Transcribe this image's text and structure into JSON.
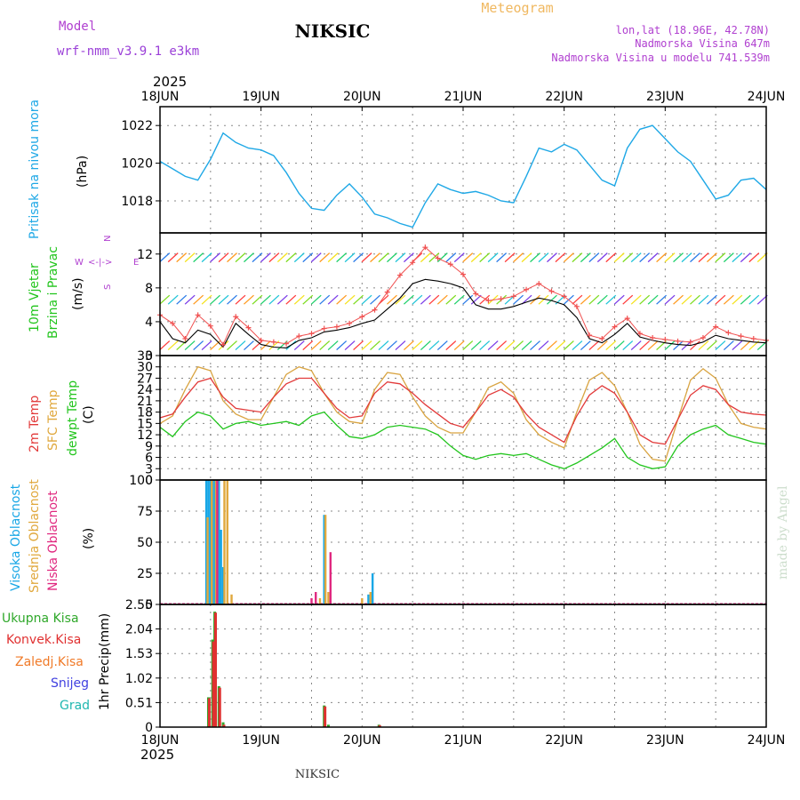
{
  "header": {
    "model_label": "Model",
    "model_name": "wrf-nmm_v3.9.1 e3km",
    "station": "NIKSIC",
    "product": "Meteogram",
    "lonlat": "lon,lat (18.96E, 42.78N)",
    "elevation": "Nadmorska Visina 647m",
    "model_elevation": "Nadmorska Visina u modelu 741.539m",
    "year_top": "2025",
    "year_bottom": "2025",
    "footer_station": "NIKSIC",
    "credit": "made by Angel"
  },
  "colors": {
    "pressure": "#1fa8e6",
    "temp2m": "#e23a3a",
    "sfc": "#d9a441",
    "dewpt": "#22c51d",
    "high_cloud": "#19a7e6",
    "mid_cloud": "#e0a83d",
    "low_cloud": "#e0287f",
    "precip_total": "#2fa82a",
    "precip_conv": "#e03030",
    "precip_frz": "#f07a28",
    "snow": "#4040e0",
    "hail": "#20b7b0",
    "grid": "#888888",
    "model_text": "#b040d0",
    "meteogram_text": "#f0b860"
  },
  "chart_data": [
    {
      "panel": "pressure",
      "type": "line",
      "ylabel_main": "Pritisak na nivou mora",
      "ylabel_unit": "(hPa)",
      "ylim": [
        1016.3,
        1023
      ],
      "yticks": [
        1018,
        1020,
        1022
      ],
      "x_hours": [
        0,
        3,
        6,
        9,
        12,
        15,
        18,
        21,
        24,
        27,
        30,
        33,
        36,
        39,
        42,
        45,
        48,
        51,
        54,
        57,
        60,
        63,
        66,
        69,
        72,
        75,
        78,
        81,
        84,
        87,
        90,
        93,
        96,
        99,
        102,
        105,
        108,
        111,
        114,
        117,
        120,
        123,
        126,
        129,
        132,
        135,
        138,
        141,
        144
      ],
      "values_hpa": [
        1020.1,
        1019.7,
        1019.3,
        1019.1,
        1020.2,
        1021.6,
        1021.1,
        1020.8,
        1020.7,
        1020.4,
        1019.5,
        1018.4,
        1017.6,
        1017.5,
        1018.3,
        1018.9,
        1018.2,
        1017.3,
        1017.1,
        1016.8,
        1016.6,
        1017.9,
        1018.9,
        1018.6,
        1018.4,
        1018.5,
        1018.3,
        1018.0,
        1017.9,
        1019.3,
        1020.8,
        1020.6,
        1021.0,
        1020.7,
        1019.9,
        1019.1,
        1018.8,
        1020.8,
        1021.8,
        1022.0,
        1021.3,
        1020.6,
        1020.1,
        1019.1,
        1018.1,
        1018.3,
        1019.1,
        1019.2,
        1018.6
      ]
    },
    {
      "panel": "wind",
      "type": "line",
      "ylabel_main_1": "10m Vjetar",
      "ylabel_main_2": "Brzina i Pravac",
      "ylabel_unit": "(m/s)",
      "compass_n": "N",
      "compass_s": "S",
      "compass_w": "W",
      "compass_e": "E",
      "compass_arrows": "<-|->",
      "ylim": [
        0,
        14.5
      ],
      "yticks": [
        0,
        4,
        8,
        12
      ],
      "x_hours": [
        0,
        3,
        6,
        9,
        12,
        15,
        18,
        21,
        24,
        27,
        30,
        33,
        36,
        39,
        42,
        45,
        48,
        51,
        54,
        57,
        60,
        63,
        66,
        69,
        72,
        75,
        78,
        81,
        84,
        87,
        90,
        93,
        96,
        99,
        102,
        105,
        108,
        111,
        114,
        117,
        120,
        123,
        126,
        129,
        132,
        135,
        138,
        141,
        144
      ],
      "speed": [
        4.0,
        2.0,
        1.5,
        3.0,
        2.5,
        1.0,
        3.8,
        2.5,
        1.3,
        1.0,
        0.9,
        1.8,
        2.1,
        2.8,
        3.0,
        3.3,
        3.8,
        4.2,
        5.5,
        6.8,
        8.5,
        9.0,
        8.8,
        8.5,
        8.0,
        6.0,
        5.5,
        5.5,
        5.8,
        6.3,
        6.8,
        6.5,
        6.0,
        4.5,
        2.0,
        1.5,
        2.5,
        3.8,
        2.2,
        1.8,
        1.5,
        1.3,
        1.2,
        1.6,
        2.4,
        2.0,
        1.8,
        1.6,
        1.5
      ],
      "gust": [
        4.8,
        3.8,
        2.0,
        4.8,
        3.5,
        1.3,
        4.6,
        3.3,
        1.8,
        1.6,
        1.4,
        2.3,
        2.6,
        3.2,
        3.4,
        3.8,
        4.6,
        5.4,
        7.5,
        9.5,
        11.0,
        12.8,
        11.5,
        10.8,
        9.6,
        7.3,
        6.5,
        6.7,
        7.0,
        7.8,
        8.5,
        7.6,
        7.0,
        5.8,
        2.4,
        2.0,
        3.4,
        4.4,
        2.6,
        2.1,
        1.9,
        1.7,
        1.6,
        2.1,
        3.4,
        2.7,
        2.3,
        2.0,
        1.8
      ],
      "barb_rows_ms": [
        1.2,
        6.6,
        11.6
      ]
    },
    {
      "panel": "temperature",
      "type": "line",
      "ylabel_main_1": "2m Temp",
      "ylabel_main_2": "SFC Temp",
      "ylabel_main_3": "dewpt Temp",
      "ylabel_unit": "(C)",
      "ylim": [
        0,
        33
      ],
      "yticks": [
        0,
        3,
        6,
        9,
        12,
        15,
        18,
        21,
        24,
        27,
        30,
        33
      ],
      "x_hours": [
        0,
        3,
        6,
        9,
        12,
        15,
        18,
        21,
        24,
        27,
        30,
        33,
        36,
        39,
        42,
        45,
        48,
        51,
        54,
        57,
        60,
        63,
        66,
        69,
        72,
        75,
        78,
        81,
        84,
        87,
        90,
        93,
        96,
        99,
        102,
        105,
        108,
        111,
        114,
        117,
        120,
        123,
        126,
        129,
        132,
        135,
        138,
        141,
        144
      ],
      "temp2m": [
        16.5,
        17.5,
        22.0,
        26.0,
        27.0,
        22.0,
        19.0,
        18.5,
        18.0,
        22.0,
        25.5,
        27.0,
        27.0,
        23.0,
        19.0,
        16.5,
        17.0,
        23.0,
        26.0,
        25.5,
        23.0,
        20.0,
        17.5,
        15.0,
        14.0,
        18.0,
        22.5,
        24.0,
        22.0,
        17.5,
        14.0,
        12.0,
        10.0,
        17.0,
        22.5,
        25.0,
        23.0,
        18.0,
        12.0,
        10.0,
        9.5,
        16.0,
        22.5,
        25.0,
        24.0,
        20.0,
        18.0,
        17.5,
        17.2
      ],
      "sfc": [
        15.0,
        17.0,
        24.0,
        30.0,
        29.0,
        21.0,
        17.5,
        16.0,
        16.0,
        22.0,
        28.0,
        30.0,
        29.0,
        23.0,
        18.0,
        15.5,
        15.0,
        24.0,
        28.5,
        28.0,
        22.0,
        17.0,
        14.0,
        12.5,
        12.5,
        18.0,
        24.5,
        26.0,
        23.0,
        16.0,
        12.0,
        10.0,
        8.5,
        18.0,
        26.5,
        28.5,
        25.0,
        18.0,
        9.5,
        5.5,
        5.0,
        16.0,
        26.5,
        29.5,
        27.0,
        20.0,
        15.0,
        14.0,
        13.5
      ],
      "dewpt": [
        14.0,
        11.5,
        15.5,
        18.0,
        17.0,
        13.5,
        15.0,
        15.5,
        14.5,
        15.0,
        15.5,
        14.5,
        17.0,
        18.0,
        14.5,
        11.5,
        11.0,
        12.0,
        14.0,
        14.5,
        14.0,
        13.5,
        12.0,
        9.0,
        6.5,
        5.5,
        6.5,
        7.0,
        6.5,
        7.0,
        5.5,
        4.0,
        3.0,
        4.5,
        6.5,
        8.5,
        11.0,
        6.0,
        4.0,
        3.0,
        3.5,
        9.0,
        12.0,
        13.5,
        14.5,
        12.0,
        11.0,
        10.0,
        9.5
      ]
    },
    {
      "panel": "cloud",
      "type": "bar",
      "ylabel_main_1": "Visoka Oblacnost",
      "ylabel_main_2": "Srednja Oblacnost",
      "ylabel_main_3": "Niska Oblacnost",
      "ylabel_unit": "(%)",
      "ylim": [
        0,
        100
      ],
      "yticks": [
        0,
        25,
        50,
        75,
        100
      ],
      "high": [
        [
          11,
          100
        ],
        [
          11.5,
          100
        ],
        [
          12,
          100
        ],
        [
          12.5,
          100
        ],
        [
          13,
          100
        ],
        [
          14,
          100
        ],
        [
          14.5,
          60
        ],
        [
          15,
          30
        ],
        [
          39,
          72
        ],
        [
          49.5,
          8
        ],
        [
          50.5,
          25
        ]
      ],
      "mid": [
        [
          11.3,
          70
        ],
        [
          12.3,
          100
        ],
        [
          13.3,
          100
        ],
        [
          15.3,
          100
        ],
        [
          16,
          100
        ],
        [
          17,
          8
        ],
        [
          38,
          5
        ],
        [
          39.3,
          72
        ],
        [
          40,
          10
        ],
        [
          48,
          5
        ],
        [
          50,
          10
        ]
      ],
      "low": [
        [
          13.6,
          100
        ],
        [
          36,
          5
        ],
        [
          37,
          10
        ],
        [
          40.5,
          42
        ]
      ]
    },
    {
      "panel": "precip",
      "type": "bar",
      "ylabel_main": "1hr Precip",
      "ylabel_unit": "(mm)",
      "legend": [
        "Ukupna Kisa",
        "Konvek.Kisa",
        "Zaledj.Kisa",
        "Snijeg",
        "Grad"
      ],
      "ylim": [
        0,
        2.55
      ],
      "yticks": [
        0,
        0.51,
        1.02,
        1.53,
        2.04,
        2.55
      ],
      "ytick_labels": [
        "0",
        "0.51",
        "1.02",
        "1.53",
        "2.04",
        "2.55"
      ],
      "total": [
        [
          11.5,
          0.62
        ],
        [
          12.5,
          1.82
        ],
        [
          13,
          2.4
        ],
        [
          14,
          0.85
        ],
        [
          15,
          0.1
        ],
        [
          39,
          0.45
        ],
        [
          40,
          0.05
        ],
        [
          52,
          0.05
        ]
      ],
      "convective": [
        [
          11.7,
          0.6
        ],
        [
          12.7,
          1.78
        ],
        [
          13.2,
          2.38
        ],
        [
          14.2,
          0.82
        ],
        [
          15.2,
          0.05
        ],
        [
          39.2,
          0.43
        ],
        [
          52.2,
          0.04
        ]
      ]
    }
  ],
  "xaxis": {
    "date_labels": [
      "18JUN",
      "19JUN",
      "20JUN",
      "21JUN",
      "22JUN",
      "23JUN",
      "24JUN"
    ],
    "hours_per_label": 24
  }
}
